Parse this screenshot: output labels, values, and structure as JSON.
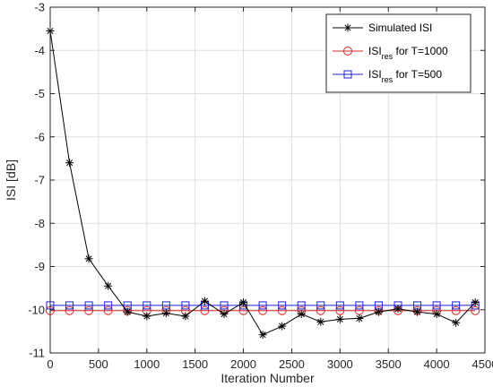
{
  "chart_data": {
    "type": "line",
    "xlabel": "Iteration Number",
    "ylabel": "ISI [dB]",
    "xlim": [
      0,
      4500
    ],
    "ylim": [
      -11,
      -3
    ],
    "x_ticks": [
      0,
      500,
      1000,
      1500,
      2000,
      2500,
      3000,
      3500,
      4000,
      4500
    ],
    "y_ticks": [
      -11,
      -10,
      -9,
      -8,
      -7,
      -6,
      -5,
      -4,
      -3
    ],
    "grid": true,
    "legend_position": "top-right",
    "series": [
      {
        "name": "Simulated ISI",
        "color": "#000000",
        "marker": "asterisk",
        "x": [
          0,
          200,
          400,
          600,
          800,
          1000,
          1200,
          1400,
          1600,
          1800,
          2000,
          2200,
          2400,
          2600,
          2800,
          3000,
          3200,
          3400,
          3600,
          3800,
          4000,
          4200,
          4400
        ],
        "y": [
          -3.55,
          -6.6,
          -8.82,
          -9.45,
          -10.05,
          -10.15,
          -10.08,
          -10.15,
          -9.8,
          -10.1,
          -9.83,
          -10.58,
          -10.38,
          -10.1,
          -10.28,
          -10.22,
          -10.2,
          -10.05,
          -9.98,
          -10.05,
          -10.1,
          -10.3,
          -9.83
        ]
      },
      {
        "name": "ISI",
        "name_sub": "res",
        "name_suffix": " for T=1000",
        "color": "#d62728",
        "marker": "circle",
        "x": [
          0,
          200,
          400,
          600,
          800,
          1000,
          1200,
          1400,
          1600,
          1800,
          2000,
          2200,
          2400,
          2600,
          2800,
          3000,
          3200,
          3400,
          3600,
          3800,
          4000,
          4200,
          4400
        ],
        "y": [
          -10.02,
          -10.02,
          -10.02,
          -10.02,
          -10.02,
          -10.02,
          -10.02,
          -10.02,
          -10.02,
          -10.02,
          -10.02,
          -10.02,
          -10.02,
          -10.02,
          -10.02,
          -10.02,
          -10.02,
          -10.02,
          -10.02,
          -10.02,
          -10.02,
          -10.02,
          -10.02
        ]
      },
      {
        "name": "ISI",
        "name_sub": "res",
        "name_suffix": " for T=500",
        "color": "#1f1fd6",
        "marker": "square",
        "x": [
          0,
          200,
          400,
          600,
          800,
          1000,
          1200,
          1400,
          1600,
          1800,
          2000,
          2200,
          2400,
          2600,
          2800,
          3000,
          3200,
          3400,
          3600,
          3800,
          4000,
          4200,
          4400
        ],
        "y": [
          -9.9,
          -9.9,
          -9.9,
          -9.9,
          -9.9,
          -9.9,
          -9.9,
          -9.9,
          -9.9,
          -9.9,
          -9.9,
          -9.9,
          -9.9,
          -9.9,
          -9.9,
          -9.9,
          -9.9,
          -9.9,
          -9.9,
          -9.9,
          -9.9,
          -9.9,
          -9.9
        ]
      }
    ]
  }
}
